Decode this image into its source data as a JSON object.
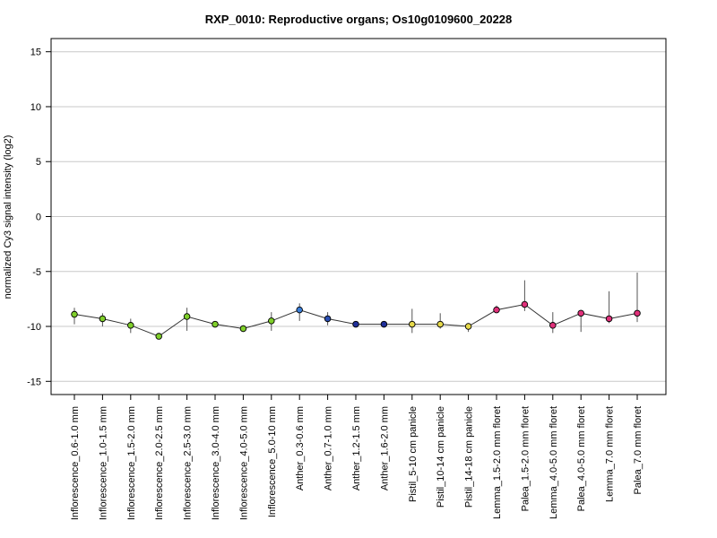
{
  "chart_data": {
    "type": "line",
    "title": "RXP_0010: Reproductive organs; Os10g0109600_20228",
    "ylabel": "normalized Cy3 signal intensity (log2)",
    "xlabel": "",
    "ylim": [
      -16.2,
      16.2
    ],
    "yticks": [
      -15,
      -10,
      -5,
      0,
      5,
      10,
      15
    ],
    "grid": true,
    "categories": [
      "Inflorescence_0.6-1.0 mm",
      "Inflorescence_1.0-1.5 mm",
      "Inflorescence_1.5-2.0 mm",
      "Inflorescence_2.0-2.5 mm",
      "Inflorescence_2.5-3.0 mm",
      "Inflorescence_3.0-4.0 mm",
      "Inflorescence_4.0-5.0 mm",
      "Inflorescence_5.0-10 mm",
      "Anther_0.3-0.6 mm",
      "Anther_0.7-1.0 mm",
      "Anther_1.2-1.5 mm",
      "Anther_1.6-2.0 mm",
      "Pistil_5-10 cm panicle",
      "Pistil_10-14 cm panicle",
      "Pistil_14-18 cm panicle",
      "Lemma_1.5-2.0 mm floret",
      "Palea_1.5-2.0 mm floret",
      "Lemma_4.0-5.0 mm floret",
      "Palea_4.0-5.0 mm floret",
      "Lemma_7.0 mm floret",
      "Palea_7.0 mm floret"
    ],
    "values": [
      -8.9,
      -9.3,
      -9.9,
      -10.9,
      -9.1,
      -9.8,
      -10.2,
      -9.5,
      -8.5,
      -9.3,
      -9.8,
      -9.8,
      -9.8,
      -9.8,
      -10.0,
      -8.5,
      -8.0,
      -9.9,
      -8.8,
      -9.3,
      -8.8
    ],
    "error_low": [
      -9.8,
      -10.0,
      -10.6,
      -11.1,
      -10.4,
      -10.0,
      -10.5,
      -10.4,
      -9.5,
      -9.9,
      -10.0,
      -10.0,
      -10.6,
      -10.2,
      -10.5,
      -8.7,
      -8.6,
      -10.6,
      -10.5,
      -9.7,
      -9.6
    ],
    "error_high": [
      -8.3,
      -8.8,
      -9.3,
      -10.7,
      -8.3,
      -9.6,
      -9.9,
      -8.7,
      -7.9,
      -8.7,
      -9.6,
      -9.6,
      -8.4,
      -8.8,
      -9.7,
      -8.1,
      -5.8,
      -8.7,
      -8.5,
      -6.8,
      -5.1
    ],
    "point_colors": [
      "#7fcf2a",
      "#7fcf2a",
      "#7fcf2a",
      "#7fcf2a",
      "#7fcf2a",
      "#7fcf2a",
      "#7fcf2a",
      "#7fcf2a",
      "#3b7fd9",
      "#2b4fb3",
      "#1f2f9a",
      "#1f2f9a",
      "#e6d94a",
      "#e6d94a",
      "#e6d94a",
      "#e0307a",
      "#e0307a",
      "#e0307a",
      "#e0307a",
      "#e0307a",
      "#e0307a"
    ]
  }
}
